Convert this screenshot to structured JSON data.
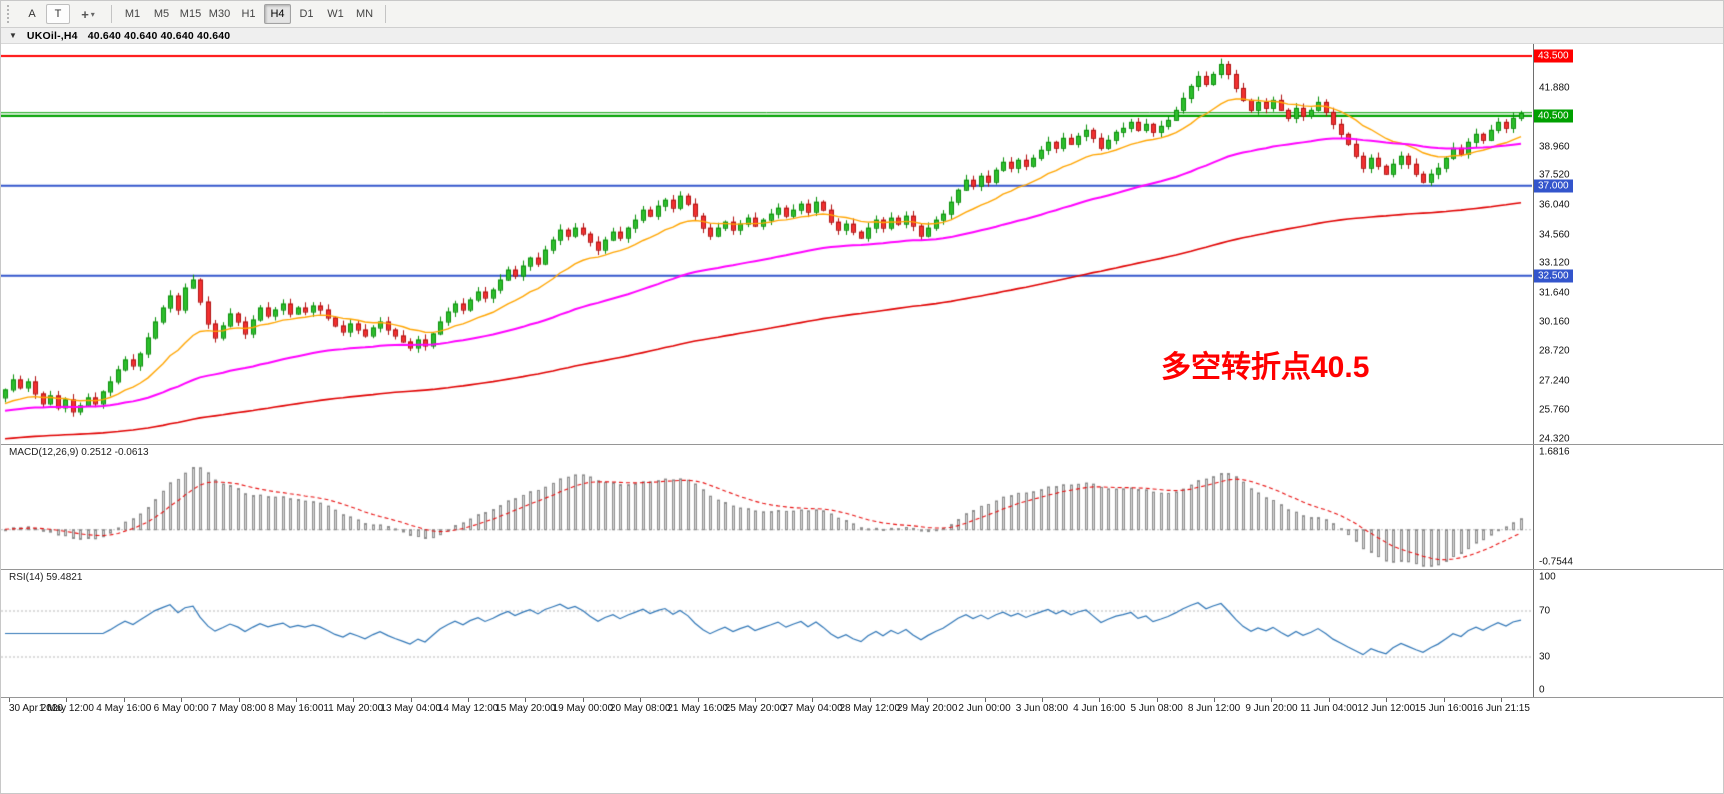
{
  "toolbar": {
    "tools": [
      {
        "label": "A"
      },
      {
        "label": "T"
      },
      {
        "glyph": "+",
        "caret": "▾"
      }
    ],
    "timeframes": [
      "M1",
      "M5",
      "M15",
      "M30",
      "H1",
      "H4",
      "D1",
      "W1",
      "MN"
    ],
    "active_timeframe": "H4"
  },
  "chart_header": {
    "collapse_glyph": "▼",
    "symbol": "UKOil-,H4",
    "ohlc": "40.640 40.640 40.640 40.640"
  },
  "chart_data": {
    "type": "candlestick",
    "symbol": "UKOil-",
    "timeframe": "H4",
    "price_range": [
      24.07,
      44.1
    ],
    "closes": [
      26.8,
      27.3,
      26.9,
      27.2,
      26.6,
      26.1,
      26.5,
      25.9,
      26.3,
      25.7,
      26.0,
      26.4,
      26.1,
      26.7,
      27.2,
      27.8,
      28.3,
      28.0,
      28.6,
      29.4,
      30.2,
      30.9,
      31.5,
      30.8,
      31.9,
      32.3,
      31.2,
      30.1,
      29.4,
      30.0,
      30.6,
      30.2,
      29.6,
      30.3,
      30.9,
      30.5,
      30.8,
      31.1,
      30.6,
      30.9,
      30.7,
      31.0,
      30.8,
      30.4,
      30.0,
      29.7,
      30.1,
      29.8,
      29.5,
      29.9,
      30.2,
      29.8,
      29.5,
      29.2,
      28.9,
      29.3,
      29.0,
      29.6,
      30.2,
      30.7,
      31.1,
      30.8,
      31.3,
      31.7,
      31.4,
      31.8,
      32.3,
      32.8,
      32.5,
      33.0,
      33.4,
      33.1,
      33.8,
      34.3,
      34.8,
      34.5,
      34.9,
      34.6,
      34.2,
      33.8,
      34.3,
      34.7,
      34.4,
      34.9,
      35.3,
      35.8,
      35.5,
      36.0,
      36.3,
      35.9,
      36.5,
      36.1,
      35.5,
      34.9,
      34.5,
      34.9,
      35.2,
      34.8,
      35.1,
      35.4,
      35.0,
      35.3,
      35.6,
      35.9,
      35.5,
      35.8,
      36.1,
      35.7,
      36.2,
      35.8,
      35.2,
      34.8,
      35.1,
      34.7,
      34.4,
      34.9,
      35.3,
      34.9,
      35.4,
      35.1,
      35.5,
      35.0,
      34.5,
      34.9,
      35.3,
      35.6,
      36.2,
      36.8,
      37.3,
      37.0,
      37.5,
      37.2,
      37.8,
      38.2,
      37.9,
      38.3,
      38.0,
      38.4,
      38.8,
      39.2,
      38.9,
      39.4,
      39.1,
      39.5,
      39.8,
      39.4,
      38.9,
      39.3,
      39.7,
      39.9,
      40.2,
      39.8,
      40.1,
      39.7,
      40.0,
      40.3,
      40.8,
      41.4,
      42.0,
      42.5,
      42.1,
      42.6,
      43.1,
      42.6,
      41.9,
      41.3,
      40.8,
      41.2,
      40.9,
      41.3,
      40.8,
      40.4,
      40.9,
      40.5,
      40.8,
      41.2,
      40.7,
      40.1,
      39.6,
      39.1,
      38.5,
      37.9,
      38.4,
      38.0,
      37.6,
      38.1,
      38.5,
      38.1,
      37.6,
      37.2,
      37.6,
      37.9,
      38.4,
      38.9,
      38.6,
      39.2,
      39.6,
      39.3,
      39.8,
      40.2,
      39.9,
      40.4,
      40.64
    ],
    "candles": {
      "up_fill": "#2DBE2D",
      "up_border": "#0A8F0A",
      "down_fill": "#F23030",
      "down_border": "#B01010"
    },
    "hlines": [
      {
        "price": 43.5,
        "color": "#FF0000",
        "width": 2,
        "badge": "43.500"
      },
      {
        "price": 40.5,
        "color": "#00A000",
        "width": 2.2,
        "badge": "40.500"
      },
      {
        "price": 40.66,
        "color": "#00A000",
        "width": 1,
        "badge": ""
      },
      {
        "price": 37.0,
        "color": "#3355CC",
        "width": 2,
        "badge": "37.000"
      },
      {
        "price": 32.5,
        "color": "#3355CC",
        "width": 2,
        "badge": "32.500"
      }
    ],
    "axis_labels": [
      "41.880",
      "38.960",
      "37.520",
      "36.040",
      "34.560",
      "33.120",
      "31.640",
      "30.160",
      "28.720",
      "27.240",
      "25.760",
      "24.320"
    ],
    "moving_averages": [
      {
        "period": 16,
        "seed": 26.0,
        "color": "#FFA500",
        "width": 1.4
      },
      {
        "period": 60,
        "seed": 25.7,
        "color": "#FF00FF",
        "width": 2.0
      },
      {
        "period": 170,
        "seed": 24.3,
        "color": "#E00000",
        "width": 1.6
      }
    ],
    "annotation": {
      "text": "多空转折点40.5",
      "color": "#FF0000"
    },
    "macd": {
      "label": "MACD(12,26,9) 0.2512 -0.0613",
      "fast": 12,
      "slow": 26,
      "signal_period": 9,
      "scale_top": 1.8,
      "scale_bottom": -0.85,
      "scale_top_label": "1.6816",
      "scale_top_value": 1.6816,
      "scale_bottom_label": "-0.7544",
      "scale_bottom_value": -0.7544,
      "hist_fill": "#D6D6D6",
      "hist_border": "#8E8E8E",
      "signal_color": "#E81010"
    },
    "rsi": {
      "label": "RSI(14) 59.4821",
      "period": 14,
      "levels": [
        70,
        30
      ],
      "axis_values": [
        100,
        70,
        30,
        0
      ],
      "line_color": "#2E75B6",
      "level_color": "#B8B8B8"
    },
    "time_labels": [
      "30 Apr 2020",
      "1 May 12:00",
      "4 May 16:00",
      "6 May 00:00",
      "7 May 08:00",
      "8 May 16:00",
      "11 May 20:00",
      "13 May 04:00",
      "14 May 12:00",
      "15 May 20:00",
      "19 May 00:00",
      "20 May 08:00",
      "21 May 16:00",
      "25 May 20:00",
      "27 May 04:00",
      "28 May 12:00",
      "29 May 20:00",
      "2 Jun 00:00",
      "3 Jun 08:00",
      "4 Jun 16:00",
      "5 Jun 08:00",
      "8 Jun 12:00",
      "9 Jun 20:00",
      "11 Jun 04:00",
      "12 Jun 12:00",
      "15 Jun 16:00",
      "16 Jun 21:15"
    ]
  }
}
